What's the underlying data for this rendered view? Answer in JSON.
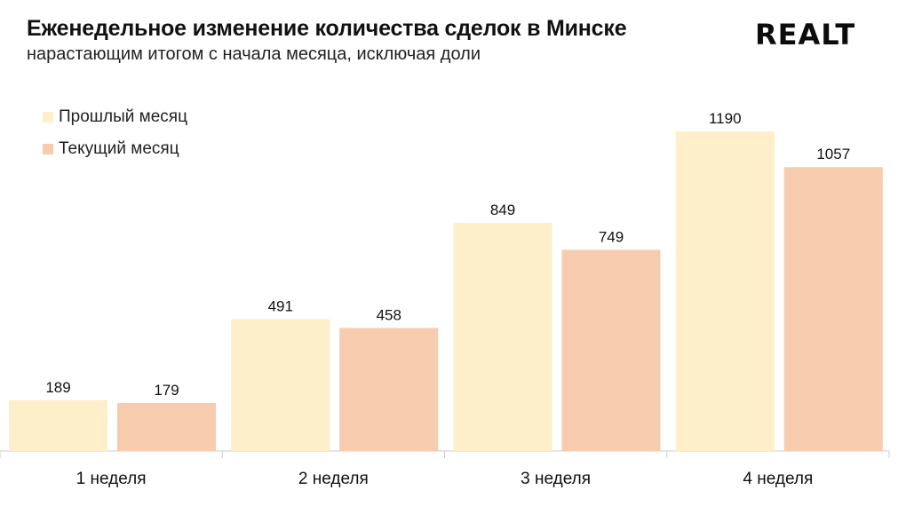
{
  "header": {
    "title": "Еженедельное изменение количества сделок в Минске",
    "subtitle": "нарастающим итогом с начала месяца, исключая доли",
    "logo_text": "REALT"
  },
  "colors": {
    "previous_month": "#fdefc9",
    "current_month": "#f7cbae",
    "axis": "#cccccc",
    "text": "#111111"
  },
  "chart_data": {
    "type": "bar",
    "title": "Еженедельное изменение количества сделок в Минске",
    "subtitle": "нарастающим итогом с начала месяца, исключая доли",
    "categories": [
      "1 неделя",
      "2 неделя",
      "3 неделя",
      "4 неделя"
    ],
    "series": [
      {
        "name": "Прошлый месяц",
        "values": [
          189,
          491,
          849,
          1190
        ]
      },
      {
        "name": "Текущий месяц",
        "values": [
          179,
          458,
          749,
          1057
        ]
      }
    ],
    "ylim": [
      0,
      1190
    ],
    "grid": false,
    "legend_position": "top-left",
    "data_labels": true
  }
}
